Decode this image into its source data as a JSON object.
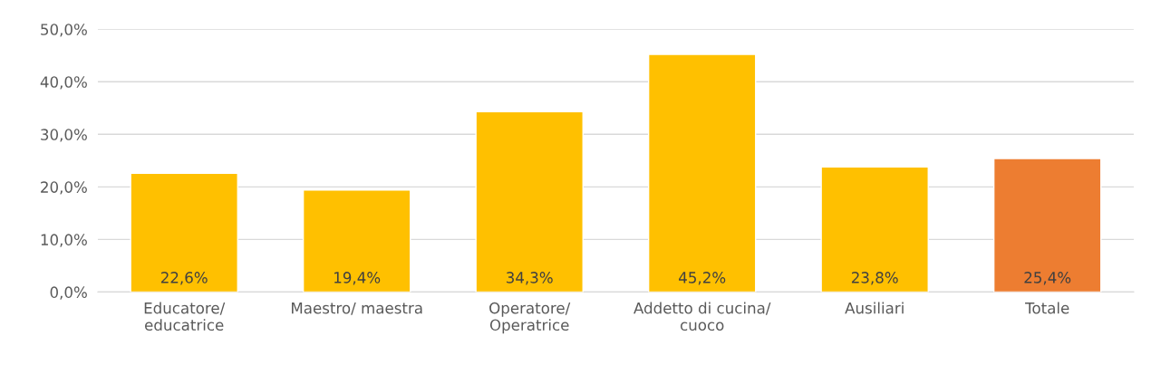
{
  "chart_data": {
    "type": "bar",
    "categories": [
      "Educatore/\neducatrice",
      "Maestro/ maestra",
      "Operatore/\nOperatrice",
      "Addetto di cucina/\ncuoco",
      "Ausiliari",
      "Totale"
    ],
    "values": [
      22.6,
      19.4,
      34.3,
      45.2,
      23.8,
      25.4
    ],
    "colors": [
      "#ffc000",
      "#ffc000",
      "#ffc000",
      "#ffc000",
      "#ffc000",
      "#ed7d31"
    ],
    "value_labels": [
      "22,6%",
      "19,4%",
      "34,3%",
      "45,2%",
      "23,8%",
      "25,4%"
    ],
    "ylim": [
      0,
      50
    ],
    "yticks": [
      {
        "value": 0,
        "label": "0,0%"
      },
      {
        "value": 10,
        "label": "10,0%"
      },
      {
        "value": 20,
        "label": "20,0%"
      },
      {
        "value": 30,
        "label": "30,0%"
      },
      {
        "value": 40,
        "label": "40,0%"
      },
      {
        "value": 50,
        "label": "50,0%"
      }
    ],
    "grid": "y",
    "legend": false
  }
}
